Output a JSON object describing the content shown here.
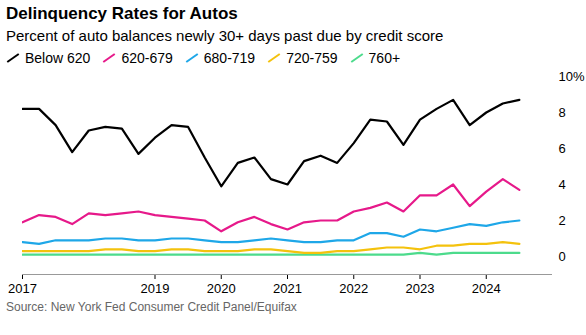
{
  "chart_data": {
    "type": "line",
    "title": "Delinquency Rates for Autos",
    "subtitle": "Percent of auto balances newly 30+ days past due by credit score",
    "source": "Source: New York Fed Consumer Credit Panel/Equifax",
    "x": [
      2017,
      2017.25,
      2017.5,
      2017.75,
      2018,
      2018.25,
      2018.5,
      2018.75,
      2019,
      2019.25,
      2019.5,
      2019.75,
      2020,
      2020.25,
      2020.5,
      2020.75,
      2021,
      2021.25,
      2021.5,
      2021.75,
      2022,
      2022.25,
      2022.5,
      2022.75,
      2023,
      2023.25,
      2023.5,
      2023.75,
      2024,
      2024.25,
      2024.5
    ],
    "series": [
      {
        "name": "Below 620",
        "color": "#000000",
        "values": [
          8.2,
          8.2,
          7.3,
          5.8,
          7.0,
          7.2,
          7.1,
          5.7,
          6.6,
          7.3,
          7.2,
          5.5,
          3.9,
          5.2,
          5.5,
          4.3,
          4.0,
          5.3,
          5.6,
          5.2,
          6.3,
          7.6,
          7.5,
          6.2,
          7.6,
          8.2,
          8.7,
          7.3,
          8.0,
          8.5,
          8.7
        ]
      },
      {
        "name": "620-679",
        "color": "#e6198a",
        "values": [
          1.9,
          2.3,
          2.2,
          1.8,
          2.4,
          2.3,
          2.4,
          2.5,
          2.3,
          2.2,
          2.1,
          2.0,
          1.4,
          1.9,
          2.2,
          1.8,
          1.5,
          1.9,
          2.0,
          2.0,
          2.5,
          2.7,
          3.0,
          2.5,
          3.4,
          3.4,
          4.0,
          2.8,
          3.6,
          4.3,
          3.7
        ]
      },
      {
        "name": "680-719",
        "color": "#1ea7e8",
        "values": [
          0.8,
          0.7,
          0.9,
          0.9,
          0.9,
          1.0,
          1.0,
          0.9,
          0.9,
          1.0,
          1.0,
          0.9,
          0.8,
          0.8,
          0.9,
          1.0,
          0.9,
          0.8,
          0.8,
          0.9,
          0.9,
          1.3,
          1.3,
          1.1,
          1.5,
          1.4,
          1.6,
          1.8,
          1.7,
          1.9,
          2.0
        ]
      },
      {
        "name": "720-759",
        "color": "#f4c20d",
        "values": [
          0.3,
          0.3,
          0.3,
          0.3,
          0.3,
          0.4,
          0.4,
          0.3,
          0.3,
          0.4,
          0.4,
          0.3,
          0.3,
          0.3,
          0.4,
          0.4,
          0.3,
          0.2,
          0.2,
          0.3,
          0.3,
          0.4,
          0.5,
          0.5,
          0.4,
          0.6,
          0.6,
          0.7,
          0.7,
          0.8,
          0.7
        ]
      },
      {
        "name": "760+",
        "color": "#4cdb8c",
        "values": [
          0.1,
          0.1,
          0.1,
          0.1,
          0.1,
          0.1,
          0.1,
          0.1,
          0.1,
          0.1,
          0.1,
          0.1,
          0.1,
          0.1,
          0.1,
          0.1,
          0.1,
          0.1,
          0.1,
          0.1,
          0.1,
          0.1,
          0.1,
          0.1,
          0.2,
          0.1,
          0.2,
          0.2,
          0.2,
          0.2,
          0.2
        ]
      }
    ],
    "xlim": [
      2017,
      2025
    ],
    "xticks": [
      2017,
      2019,
      2020,
      2021,
      2022,
      2023,
      2024
    ],
    "ylim": [
      -1,
      10
    ],
    "yticks": [
      0,
      2,
      4,
      6,
      8,
      {
        "value": 10,
        "label": "10%"
      }
    ],
    "grid": false,
    "legend": "top"
  }
}
